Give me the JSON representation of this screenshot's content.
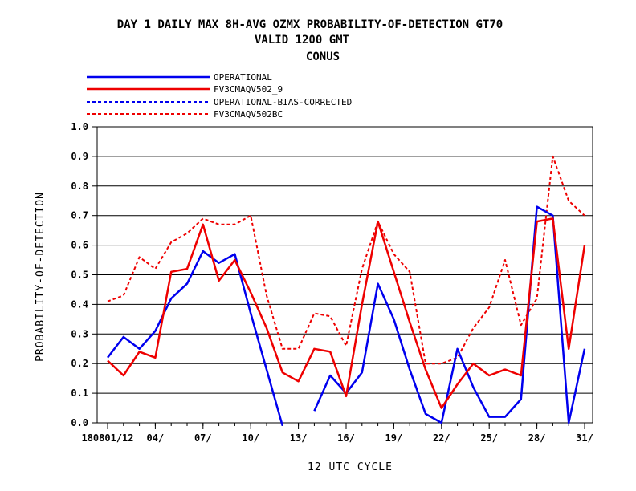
{
  "chart_data": {
    "type": "line",
    "title_lines": [
      "DAY 1 DAILY MAX   8H-AVG OZMX PROBABILITY-OF-DETECTION GT70",
      "VALID 1200 GMT",
      "CONUS"
    ],
    "xlabel": "12 UTC CYCLE",
    "ylabel": "PROBABILITY-OF-DETECTION",
    "ylim": [
      0,
      1.0
    ],
    "yticks": [
      "0.0",
      "0.1",
      "0.2",
      "0.3",
      "0.4",
      "0.5",
      "0.6",
      "0.7",
      "0.8",
      "0.9",
      "1.0"
    ],
    "xlim": [
      1,
      31
    ],
    "xticks": [
      {
        "x": 1,
        "label": "180801/12"
      },
      {
        "x": 4,
        "label": "04/"
      },
      {
        "x": 7,
        "label": "07/"
      },
      {
        "x": 10,
        "label": "10/"
      },
      {
        "x": 13,
        "label": "13/"
      },
      {
        "x": 16,
        "label": "16/"
      },
      {
        "x": 19,
        "label": "19/"
      },
      {
        "x": 22,
        "label": "22/"
      },
      {
        "x": 25,
        "label": "25/"
      },
      {
        "x": 28,
        "label": "28/"
      },
      {
        "x": 31,
        "label": "31/"
      }
    ],
    "grid": "horizontal",
    "legend_position": "top-left",
    "series": [
      {
        "name": "OPERATIONAL",
        "color": "#0000ee",
        "dash": "solid",
        "values": [
          0.22,
          0.29,
          0.25,
          0.31,
          0.42,
          0.47,
          0.58,
          0.54,
          0.57,
          0.37,
          0.18,
          -0.01,
          null,
          0.04,
          0.16,
          0.1,
          0.17,
          0.47,
          0.35,
          0.18,
          0.03,
          0.0,
          0.25,
          0.12,
          0.02,
          0.02,
          0.08,
          0.73,
          0.7,
          0.0,
          0.25
        ]
      },
      {
        "name": "FV3CMAQV502_9",
        "color": "#ee0000",
        "dash": "solid",
        "values": [
          0.21,
          0.16,
          0.24,
          0.22,
          0.51,
          0.52,
          0.67,
          0.48,
          0.55,
          0.44,
          0.32,
          0.17,
          0.14,
          0.25,
          0.24,
          0.09,
          0.4,
          0.68,
          0.51,
          0.34,
          0.18,
          0.05,
          0.13,
          0.2,
          0.16,
          0.18,
          0.16,
          0.68,
          0.69,
          0.25,
          0.6
        ]
      },
      {
        "name": "OPERATIONAL-BIAS-CORRECTED",
        "color": "#0000ee",
        "dash": "dashed",
        "values": []
      },
      {
        "name": "FV3CMAQV502BC",
        "color": "#ee0000",
        "dash": "dashed",
        "values": [
          0.41,
          0.43,
          0.56,
          0.52,
          0.61,
          0.64,
          0.69,
          0.67,
          0.67,
          0.7,
          0.43,
          0.25,
          0.25,
          0.37,
          0.36,
          0.26,
          0.52,
          0.68,
          0.57,
          0.51,
          0.2,
          0.2,
          0.22,
          0.32,
          0.39,
          0.55,
          0.33,
          0.42,
          0.9,
          0.75,
          0.7
        ]
      }
    ]
  }
}
